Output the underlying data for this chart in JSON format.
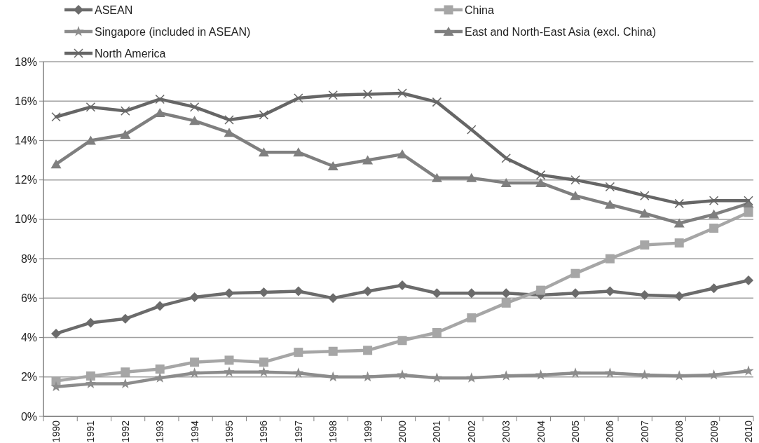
{
  "chart_data": {
    "type": "line",
    "categories": [
      "1990",
      "1991",
      "1992",
      "1993",
      "1994",
      "1995",
      "1996",
      "1997",
      "1998",
      "1999",
      "2000",
      "2001",
      "2002",
      "2003",
      "2004",
      "2005",
      "2006",
      "2007",
      "2008",
      "2009",
      "2010"
    ],
    "series": [
      {
        "name": "ASEAN",
        "color": "#6b6b6b",
        "marker": "diamond",
        "values": [
          4.2,
          4.75,
          4.95,
          5.6,
          6.05,
          6.25,
          6.3,
          6.35,
          6.0,
          6.35,
          6.65,
          6.25,
          6.25,
          6.25,
          6.15,
          6.25,
          6.35,
          6.15,
          6.1,
          6.5,
          6.9
        ]
      },
      {
        "name": "China",
        "color": "#a6a6a6",
        "marker": "square",
        "values": [
          1.8,
          2.05,
          2.25,
          2.4,
          2.75,
          2.85,
          2.75,
          3.25,
          3.3,
          3.35,
          3.85,
          4.25,
          5.0,
          5.75,
          6.4,
          7.25,
          8.0,
          8.7,
          8.8,
          9.55,
          10.35
        ]
      },
      {
        "name": "Singapore (included in ASEAN)",
        "color": "#8c8c8c",
        "marker": "star",
        "values": [
          1.5,
          1.65,
          1.65,
          1.95,
          2.2,
          2.25,
          2.25,
          2.2,
          2.0,
          2.0,
          2.1,
          1.95,
          1.95,
          2.05,
          2.1,
          2.2,
          2.2,
          2.1,
          2.05,
          2.1,
          2.3
        ]
      },
      {
        "name": "East and North-East Asia  (excl. China)",
        "color": "#7f7f7f",
        "marker": "triangle",
        "values": [
          12.8,
          14.0,
          14.3,
          15.4,
          15.0,
          14.4,
          13.4,
          13.4,
          12.7,
          13.0,
          13.3,
          12.1,
          12.1,
          11.85,
          11.85,
          11.2,
          10.75,
          10.3,
          9.8,
          10.25,
          10.8
        ]
      },
      {
        "name": "North America",
        "color": "#666666",
        "marker": "cross",
        "values": [
          15.2,
          15.7,
          15.5,
          16.1,
          15.7,
          15.05,
          15.3,
          16.15,
          16.3,
          16.35,
          16.4,
          15.95,
          14.55,
          13.1,
          12.25,
          12.0,
          11.65,
          11.2,
          10.8,
          10.95,
          10.95
        ]
      }
    ],
    "ylim": [
      0,
      18
    ],
    "yticks": [
      {
        "value": 0,
        "label": "0%"
      },
      {
        "value": 2,
        "label": "2%"
      },
      {
        "value": 4,
        "label": "4%"
      },
      {
        "value": 6,
        "label": "6%"
      },
      {
        "value": 8,
        "label": "8%"
      },
      {
        "value": 10,
        "label": "10%"
      },
      {
        "value": 12,
        "label": "12%"
      },
      {
        "value": 14,
        "label": "14%"
      },
      {
        "value": 16,
        "label": "16%"
      },
      {
        "value": 18,
        "label": "18%"
      }
    ],
    "grid": "y",
    "legend": "top",
    "line_style": "solid"
  }
}
